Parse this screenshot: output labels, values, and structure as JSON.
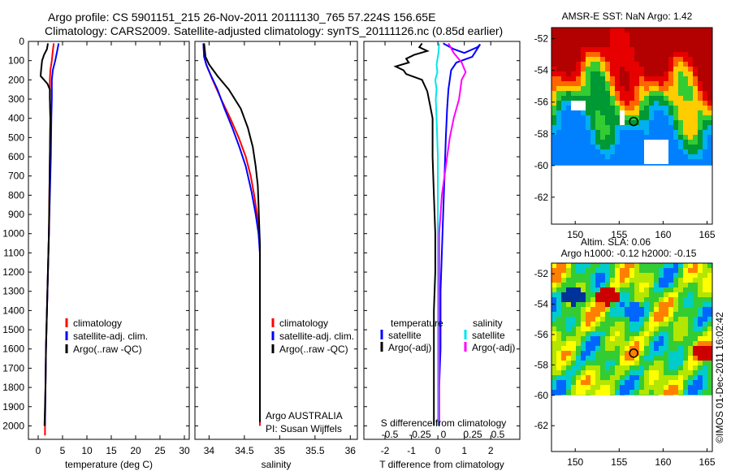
{
  "header": {
    "line1": "Argo profile: CS 5901151_215 26-Nov-2011 20111130_765 57.224S 156.65E",
    "line2": "Climatology: CARS2009. Satellite-adjusted climatology: synTS_20111126.nc (0.85d earlier)"
  },
  "depth_ticks": [
    "0",
    "100",
    "200",
    "300",
    "400",
    "500",
    "600",
    "700",
    "800",
    "900",
    "1000",
    "1100",
    "1200",
    "1300",
    "1400",
    "1500",
    "1600",
    "1700",
    "1800",
    "1900",
    "2000"
  ],
  "colors": {
    "climatology": "#ff0000",
    "satellite": "#0000ff",
    "argo": "#000000",
    "sal_sat": "#00e5ee",
    "sal_argo": "#ff00ff"
  },
  "chart_data": [
    {
      "type": "line",
      "xlabel": "temperature (deg C)",
      "ylabel": "",
      "xlim": [
        -2,
        31
      ],
      "ylim": [
        2070,
        0
      ],
      "xticks": [
        "0",
        "5",
        "10",
        "15",
        "20",
        "25",
        "30"
      ],
      "legend": {
        "placement": "bottom-left",
        "entries": [
          "climatology",
          "satellite-adj. clim.",
          "Argo(..raw -QC)"
        ]
      },
      "series": [
        {
          "name": "climatology",
          "color": "#ff0000",
          "points": [
            [
              3.2,
              10
            ],
            [
              3.0,
              50
            ],
            [
              2.8,
              100
            ],
            [
              2.5,
              150
            ],
            [
              2.4,
              200
            ],
            [
              2.4,
              250
            ],
            [
              2.4,
              300
            ],
            [
              2.5,
              400
            ],
            [
              2.4,
              600
            ],
            [
              2.3,
              800
            ],
            [
              2.2,
              1000
            ],
            [
              2.0,
              1200
            ],
            [
              1.8,
              1400
            ],
            [
              1.6,
              1600
            ],
            [
              1.5,
              1800
            ],
            [
              1.4,
              2000
            ],
            [
              1.4,
              2050
            ]
          ]
        },
        {
          "name": "satellite-adj. clim.",
          "color": "#0000ff",
          "points": [
            [
              4.2,
              10
            ],
            [
              3.9,
              50
            ],
            [
              3.5,
              100
            ],
            [
              3.0,
              150
            ],
            [
              2.8,
              200
            ],
            [
              2.8,
              300
            ],
            [
              2.7,
              400
            ],
            [
              2.6,
              600
            ],
            [
              2.4,
              800
            ],
            [
              2.2,
              1000
            ],
            [
              2.0,
              1200
            ],
            [
              1.8,
              1400
            ],
            [
              1.6,
              1600
            ],
            [
              1.5,
              1800
            ],
            [
              1.4,
              2000
            ]
          ]
        },
        {
          "name": "Argo(..raw -QC)",
          "color": "#000000",
          "points": [
            [
              2.0,
              10
            ],
            [
              1.8,
              40
            ],
            [
              1.2,
              70
            ],
            [
              0.8,
              100
            ],
            [
              0.6,
              150
            ],
            [
              0.5,
              180
            ],
            [
              1.2,
              200
            ],
            [
              1.9,
              220
            ],
            [
              2.4,
              250
            ],
            [
              2.4,
              300
            ],
            [
              2.5,
              400
            ],
            [
              2.4,
              600
            ],
            [
              2.3,
              800
            ],
            [
              2.2,
              1000
            ],
            [
              2.0,
              1200
            ],
            [
              1.8,
              1400
            ],
            [
              1.6,
              1600
            ],
            [
              1.5,
              1800
            ],
            [
              1.3,
              2000
            ]
          ]
        }
      ]
    },
    {
      "type": "line",
      "xlabel": "salinity",
      "ylabel": "",
      "xlim": [
        33.8,
        36.1
      ],
      "ylim": [
        2070,
        0
      ],
      "xticks": [
        "34",
        "34.5",
        "35",
        "35.5",
        "36"
      ],
      "legend": {
        "placement": "bottom-left",
        "entries": [
          "climatology",
          "satellite-adj. clim.",
          "Argo(..raw -QC)"
        ]
      },
      "annotations": [
        "Argo AUSTRALIA",
        "PI: Susan Wijffels"
      ],
      "series": [
        {
          "name": "climatology",
          "color": "#ff0000",
          "points": [
            [
              33.92,
              10
            ],
            [
              33.93,
              80
            ],
            [
              33.97,
              130
            ],
            [
              34.05,
              200
            ],
            [
              34.17,
              300
            ],
            [
              34.3,
              400
            ],
            [
              34.42,
              500
            ],
            [
              34.52,
              600
            ],
            [
              34.59,
              700
            ],
            [
              34.64,
              800
            ],
            [
              34.68,
              900
            ],
            [
              34.71,
              1000
            ],
            [
              34.72,
              1100
            ],
            [
              34.72,
              1200
            ],
            [
              34.72,
              1500
            ],
            [
              34.72,
              2000
            ]
          ]
        },
        {
          "name": "satellite-adj. clim.",
          "color": "#0000ff",
          "points": [
            [
              33.92,
              10
            ],
            [
              33.93,
              80
            ],
            [
              33.96,
              120
            ],
            [
              34.03,
              180
            ],
            [
              34.12,
              250
            ],
            [
              34.22,
              350
            ],
            [
              34.33,
              450
            ],
            [
              34.43,
              550
            ],
            [
              34.52,
              650
            ],
            [
              34.6,
              780
            ],
            [
              34.66,
              900
            ],
            [
              34.7,
              1000
            ],
            [
              34.72,
              1100
            ],
            [
              34.72,
              1200
            ],
            [
              34.72,
              1500
            ],
            [
              34.72,
              1980
            ]
          ]
        },
        {
          "name": "Argo(..raw -QC)",
          "color": "#000000",
          "points": [
            [
              33.93,
              10
            ],
            [
              33.95,
              80
            ],
            [
              34.0,
              120
            ],
            [
              34.12,
              180
            ],
            [
              34.28,
              250
            ],
            [
              34.45,
              350
            ],
            [
              34.55,
              450
            ],
            [
              34.62,
              550
            ],
            [
              34.66,
              650
            ],
            [
              34.69,
              750
            ],
            [
              34.7,
              850
            ],
            [
              34.71,
              950
            ],
            [
              34.72,
              1050
            ],
            [
              34.72,
              1200
            ],
            [
              34.72,
              1500
            ],
            [
              34.72,
              1980
            ]
          ]
        }
      ]
    },
    {
      "type": "line",
      "xlabel": "T difference from climatology",
      "xlabel_top": "S difference from climatology",
      "ylabel": "",
      "xlim": [
        -2.8,
        3.1
      ],
      "ylim": [
        2070,
        0
      ],
      "xticks": [
        "-2",
        "-1",
        "0",
        "1",
        "2"
      ],
      "xticks_secondary": [
        "-0.5",
        "-0.25",
        "0",
        "0.25",
        "0.5"
      ],
      "legend": {
        "placement": "bottom",
        "temperature_title": "temperature",
        "salinity_title": "salinity",
        "entries": [
          "satellite",
          "Argo(-adj)",
          "satellite",
          "Argo(-adj)"
        ]
      },
      "series": [
        {
          "name": "satellite",
          "color": "#0000ff",
          "points": [
            [
              0.2,
              10
            ],
            [
              0.6,
              40
            ],
            [
              1.0,
              60
            ],
            [
              1.5,
              30
            ],
            [
              1.6,
              15
            ],
            [
              1.3,
              80
            ],
            [
              0.7,
              110
            ],
            [
              0.5,
              150
            ],
            [
              0.4,
              250
            ],
            [
              0.35,
              350
            ],
            [
              0.3,
              500
            ],
            [
              0.25,
              700
            ],
            [
              0.2,
              900
            ],
            [
              0.15,
              1100
            ],
            [
              0.1,
              1300
            ],
            [
              0.1,
              1600
            ],
            [
              0.05,
              1800
            ],
            [
              0.05,
              2000
            ]
          ]
        },
        {
          "name": "Argo(-adj)",
          "color": "#000000",
          "points": [
            [
              -0.6,
              10
            ],
            [
              -0.7,
              30
            ],
            [
              -0.4,
              50
            ],
            [
              -0.9,
              70
            ],
            [
              -1.2,
              90
            ],
            [
              -1.1,
              110
            ],
            [
              -1.6,
              130
            ],
            [
              -1.3,
              150
            ],
            [
              -1.2,
              170
            ],
            [
              -0.6,
              200
            ],
            [
              -0.4,
              260
            ],
            [
              -0.3,
              330
            ],
            [
              -0.2,
              400
            ],
            [
              -0.2,
              600
            ],
            [
              -0.15,
              800
            ],
            [
              -0.1,
              1000
            ],
            [
              -0.1,
              1200
            ],
            [
              -0.15,
              1400
            ],
            [
              -0.15,
              1600
            ],
            [
              -0.15,
              1800
            ],
            [
              -0.15,
              2000
            ]
          ]
        },
        {
          "name": "satellite",
          "color": "#00e5ee",
          "points": [
            [
              0.05,
              10
            ],
            [
              0.02,
              60
            ],
            [
              -0.05,
              120
            ],
            [
              -0.02,
              160
            ],
            [
              -0.1,
              200
            ],
            [
              -0.05,
              250
            ],
            [
              -0.08,
              300
            ],
            [
              -0.05,
              400
            ],
            [
              0.0,
              600
            ],
            [
              0.0,
              800
            ],
            [
              0.0,
              1000
            ],
            [
              0.0,
              1200
            ],
            [
              0.0,
              1500
            ],
            [
              0.0,
              1800
            ],
            [
              0.0,
              2000
            ]
          ]
        },
        {
          "name": "Argo(-adj)",
          "color": "#ff00ff",
          "points": [
            [
              0.4,
              10
            ],
            [
              0.6,
              60
            ],
            [
              0.9,
              110
            ],
            [
              1.05,
              160
            ],
            [
              0.9,
              200
            ],
            [
              0.8,
              300
            ],
            [
              0.6,
              400
            ],
            [
              0.45,
              500
            ],
            [
              0.35,
              600
            ],
            [
              0.25,
              700
            ],
            [
              0.15,
              800
            ],
            [
              0.1,
              900
            ],
            [
              0.05,
              1000
            ],
            [
              0.05,
              1200
            ],
            [
              0.05,
              1500
            ],
            [
              0.05,
              1800
            ],
            [
              0.05,
              2000
            ]
          ]
        }
      ]
    },
    {
      "type": "heatmap",
      "title": "AMSR-E SST: NaN Argo: 1.42",
      "xlim": [
        147.3,
        165.6
      ],
      "ylim": [
        -63.7,
        -51.3
      ],
      "xticks": [
        "150",
        "155",
        "160",
        "165"
      ],
      "yticks": [
        "-52",
        "-54",
        "-56",
        "-58",
        "-60",
        "-62"
      ],
      "marker": {
        "lon": 156.65,
        "lat": -57.224
      }
    },
    {
      "type": "heatmap",
      "title": "Altim. SLA: 0.06",
      "subtitle": "Argo h1000: -0.12 h2000: -0.15",
      "xlim": [
        147.3,
        165.6
      ],
      "ylim": [
        -63.7,
        -51.3
      ],
      "xticks": [
        "150",
        "155",
        "160",
        "165"
      ],
      "yticks": [
        "-52",
        "-54",
        "-56",
        "-58",
        "-60",
        "-62"
      ],
      "marker": {
        "lon": 156.65,
        "lat": -57.224
      }
    }
  ],
  "credit": "©IMOS 01-Dec-2011 16:02:42"
}
